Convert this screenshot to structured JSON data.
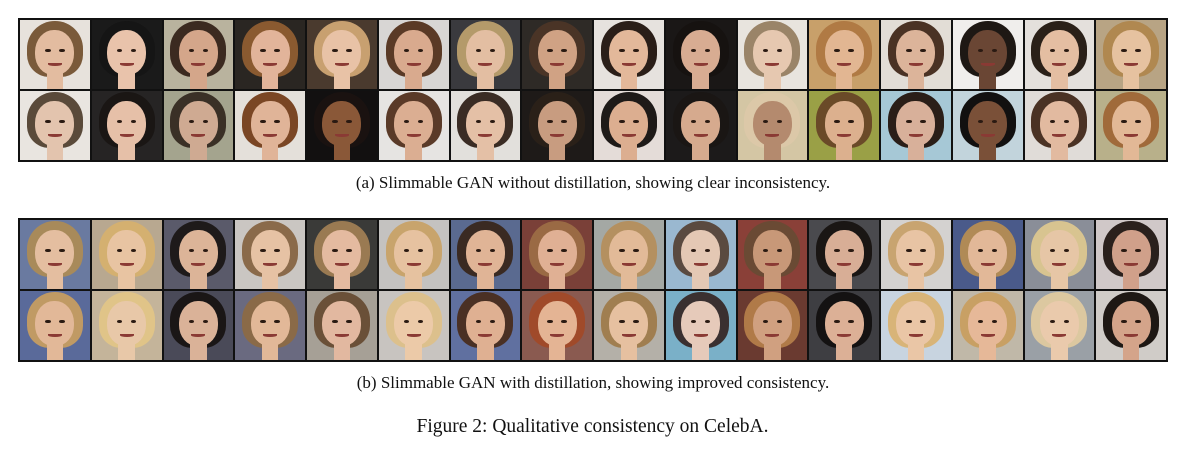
{
  "subfigures": [
    {
      "id": "a",
      "caption": "(a)  Slimmable GAN without distillation, showing clear inconsistency.",
      "rows": [
        [
          {
            "bg": "#e7e2dc",
            "hair": "#7a5a3a",
            "skin": "#e3bca0"
          },
          {
            "bg": "#1a1a1a",
            "hair": "#151515",
            "skin": "#e9c3ab"
          },
          {
            "bg": "#b9b39e",
            "hair": "#3b2a20",
            "skin": "#d4a68a"
          },
          {
            "bg": "#2a2622",
            "hair": "#8a5a30",
            "skin": "#e2b49a"
          },
          {
            "bg": "#4a3a2e",
            "hair": "#c8a070",
            "skin": "#e8c2a6"
          },
          {
            "bg": "#d8d6d4",
            "hair": "#5a3a26",
            "skin": "#d9aa8e"
          },
          {
            "bg": "#3a3a3e",
            "hair": "#b49a6a",
            "skin": "#e3bea2"
          },
          {
            "bg": "#2e2a26",
            "hair": "#4a3426",
            "skin": "#d0a284"
          },
          {
            "bg": "#e6e2de",
            "hair": "#2a1e18",
            "skin": "#e3b89a"
          },
          {
            "bg": "#1a1716",
            "hair": "#161210",
            "skin": "#d8ac92"
          },
          {
            "bg": "#e8e4de",
            "hair": "#9a8468",
            "skin": "#e6c8b0"
          },
          {
            "bg": "#c8a06a",
            "hair": "#b07a44",
            "skin": "#e2b692"
          },
          {
            "bg": "#e2ddd6",
            "hair": "#4a3224",
            "skin": "#dcb49a"
          },
          {
            "bg": "#f0eeec",
            "hair": "#1e1814",
            "skin": "#6a4634"
          },
          {
            "bg": "#e4e0dc",
            "hair": "#2a2018",
            "skin": "#e4bea2"
          },
          {
            "bg": "#b8a484",
            "hair": "#b08850",
            "skin": "#e6c2a0"
          }
        ],
        [
          {
            "bg": "#e9e5e0",
            "hair": "#5a4a3a",
            "skin": "#e3c4ae"
          },
          {
            "bg": "#262424",
            "hair": "#1a1614",
            "skin": "#e6c0a8"
          },
          {
            "bg": "#a4a48e",
            "hair": "#3a3026",
            "skin": "#cfaa92"
          },
          {
            "bg": "#e4e0da",
            "hair": "#7a4624",
            "skin": "#e0b498"
          },
          {
            "bg": "#121010",
            "hair": "#1a1210",
            "skin": "#8a5838"
          },
          {
            "bg": "#e6e4e2",
            "hair": "#5a3a28",
            "skin": "#dbae92"
          },
          {
            "bg": "#e2e0dc",
            "hair": "#3a2c24",
            "skin": "#e4c0a6"
          },
          {
            "bg": "#1e1a18",
            "hair": "#2a2018",
            "skin": "#c89c80"
          },
          {
            "bg": "#e4dcd8",
            "hair": "#1e1a18",
            "skin": "#dcae90"
          },
          {
            "bg": "#1c1a1a",
            "hair": "#1a1614",
            "skin": "#d6aa8e"
          },
          {
            "bg": "#d4c6a4",
            "hair": "#dcc8a8",
            "skin": "#b48a6e"
          },
          {
            "bg": "#9aa046",
            "hair": "#6a4a28",
            "skin": "#dcb08e"
          },
          {
            "bg": "#a6c8d6",
            "hair": "#2a1e18",
            "skin": "#d8b09a"
          },
          {
            "bg": "#c2d4dc",
            "hair": "#121010",
            "skin": "#7a5038"
          },
          {
            "bg": "#e0dcd8",
            "hair": "#4a3224",
            "skin": "#e2baa0"
          },
          {
            "bg": "#b8b08a",
            "hair": "#a06a3a",
            "skin": "#e2b896"
          }
        ]
      ]
    },
    {
      "id": "b",
      "caption": "(b)  Slimmable GAN with distillation, showing improved consistency.",
      "rows": [
        [
          {
            "bg": "#6a7aa0",
            "hair": "#a88a5a",
            "skin": "#e4bea0"
          },
          {
            "bg": "#b8a890",
            "hair": "#d4b070",
            "skin": "#e8c4a2"
          },
          {
            "bg": "#5a5a6a",
            "hair": "#1e1a1a",
            "skin": "#dcb498"
          },
          {
            "bg": "#cac6c2",
            "hair": "#8a6a4a",
            "skin": "#e6c2a4"
          },
          {
            "bg": "#3a3a38",
            "hair": "#9a7a52",
            "skin": "#e4baa0"
          },
          {
            "bg": "#c4c2c0",
            "hair": "#c8a46c",
            "skin": "#e6c2a0"
          },
          {
            "bg": "#5a6a90",
            "hair": "#3a2a22",
            "skin": "#e0b496"
          },
          {
            "bg": "#7a4038",
            "hair": "#9a6a44",
            "skin": "#e0b094"
          },
          {
            "bg": "#a4a8a4",
            "hair": "#b49060",
            "skin": "#e2ba98"
          },
          {
            "bg": "#9ab8d0",
            "hair": "#5a4a40",
            "skin": "#e4c8b4"
          },
          {
            "bg": "#8a4038",
            "hair": "#6a4a34",
            "skin": "#c89878"
          },
          {
            "bg": "#4a4a4e",
            "hair": "#1a1614",
            "skin": "#d8ae96"
          },
          {
            "bg": "#d4d2d0",
            "hair": "#c8a470",
            "skin": "#e8c4a4"
          },
          {
            "bg": "#4a5a8a",
            "hair": "#b08a56",
            "skin": "#e2b898"
          },
          {
            "bg": "#8a8e98",
            "hair": "#d8c490",
            "skin": "#e6c6a6"
          },
          {
            "bg": "#d0c8c8",
            "hair": "#2a201c",
            "skin": "#d0a08a"
          }
        ],
        [
          {
            "bg": "#5a6a9a",
            "hair": "#c09a64",
            "skin": "#e2b898"
          },
          {
            "bg": "#c4b49a",
            "hair": "#e0c488",
            "skin": "#e8c8a8"
          },
          {
            "bg": "#4a4a58",
            "hair": "#1a1616",
            "skin": "#dab298"
          },
          {
            "bg": "#6a6a80",
            "hair": "#8a6a48",
            "skin": "#e2b898"
          },
          {
            "bg": "#a6a096",
            "hair": "#6a5038",
            "skin": "#e2b8a0"
          },
          {
            "bg": "#c8c4c0",
            "hair": "#dcc08c",
            "skin": "#eccaa8"
          },
          {
            "bg": "#6070a0",
            "hair": "#4a3024",
            "skin": "#dfb092"
          },
          {
            "bg": "#8a5a50",
            "hair": "#a04a2a",
            "skin": "#e4b494"
          },
          {
            "bg": "#b4b0a8",
            "hair": "#a07e50",
            "skin": "#e6c0a0"
          },
          {
            "bg": "#7ab0c8",
            "hair": "#3a3030",
            "skin": "#e6caba"
          },
          {
            "bg": "#6a3a30",
            "hair": "#b07a48",
            "skin": "#d0a080"
          },
          {
            "bg": "#3e3e42",
            "hair": "#141212",
            "skin": "#dcb096"
          },
          {
            "bg": "#c8d4e0",
            "hair": "#d8b478",
            "skin": "#eac6a6"
          },
          {
            "bg": "#c0b8a8",
            "hair": "#c8a064",
            "skin": "#e6b898"
          },
          {
            "bg": "#9aa0a6",
            "hair": "#dcc8a0",
            "skin": "#eacaac"
          },
          {
            "bg": "#d0ccc8",
            "hair": "#1e1814",
            "skin": "#d4a48a"
          }
        ]
      ]
    }
  ],
  "figure_caption": "Figure 2: Qualitative consistency on CelebA."
}
